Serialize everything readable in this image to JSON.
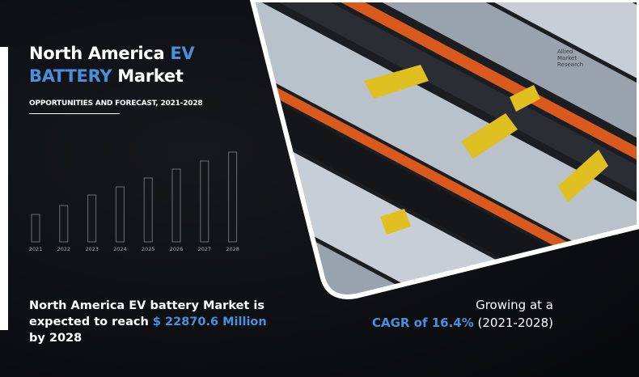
{
  "title": {
    "part1": "North America ",
    "part1_accent": "EV",
    "part2_accent": "BATTERY",
    "part2": " Market"
  },
  "subtitle": "OPPORTUNITIES AND FORECAST, 2021-2028",
  "chart_data": {
    "type": "bar",
    "categories": [
      "2021",
      "2022",
      "2023",
      "2024",
      "2025",
      "2026",
      "2027",
      "2028"
    ],
    "title": "",
    "xlabel": "",
    "ylabel": ""
  },
  "summary": {
    "line1": "North America EV battery  Market is",
    "line2_prefix": "expected to reach ",
    "value": "$ 22870.6 Million",
    "line3": "by 2028"
  },
  "growth": {
    "line1": "Growing at a",
    "cagr": "CAGR of 16.4%",
    "period": " (2021-2028)"
  },
  "logo": {
    "lines": [
      "Allied",
      "Market",
      "Research"
    ]
  },
  "colors": {
    "accent": "#4a8fdc",
    "background": "#0d0e12",
    "bar_outline": "#6b6d74"
  }
}
